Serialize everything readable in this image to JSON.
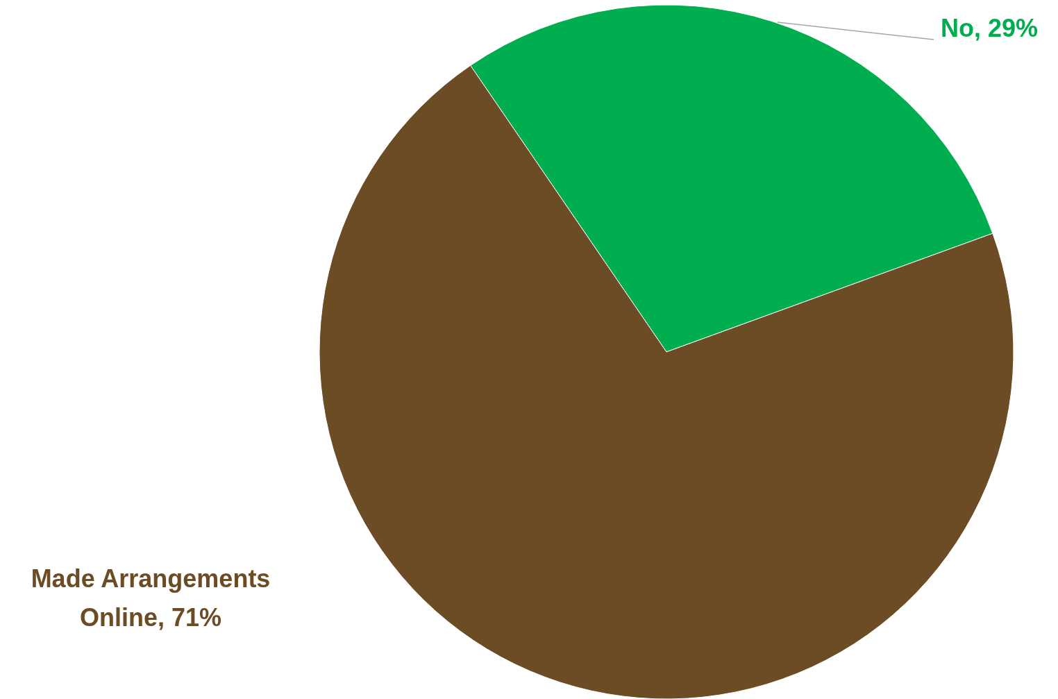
{
  "chart_data": {
    "type": "pie",
    "categories": [
      "No",
      "Made Arrangements Online"
    ],
    "values": [
      29,
      71
    ],
    "colors": [
      "#00ae4f",
      "#6b4c24"
    ],
    "value_labels": [
      "29%",
      "71%"
    ]
  }
}
